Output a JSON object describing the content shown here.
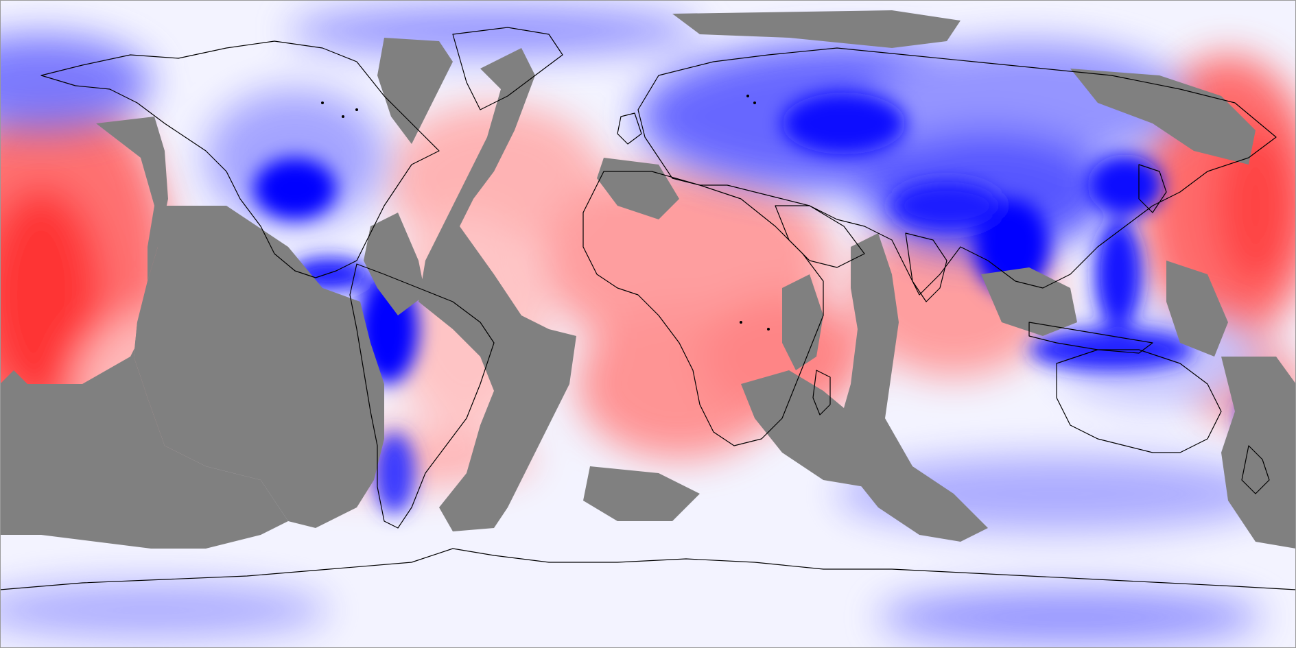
{
  "map": {
    "projection": "equirectangular",
    "kind": "global anomaly field with contour shading",
    "colors": {
      "missing": "#808080",
      "coast": "#000000",
      "deep_blue": "#0000ff",
      "mid_blue": "#6b6bff",
      "light_blue": "#c9c9ff",
      "neutral": "#f4f4ff",
      "light_red": "#ffc6c6",
      "mid_red": "#ff7a7a",
      "deep_red": "#ff0000"
    },
    "notes_visible_text": []
  }
}
